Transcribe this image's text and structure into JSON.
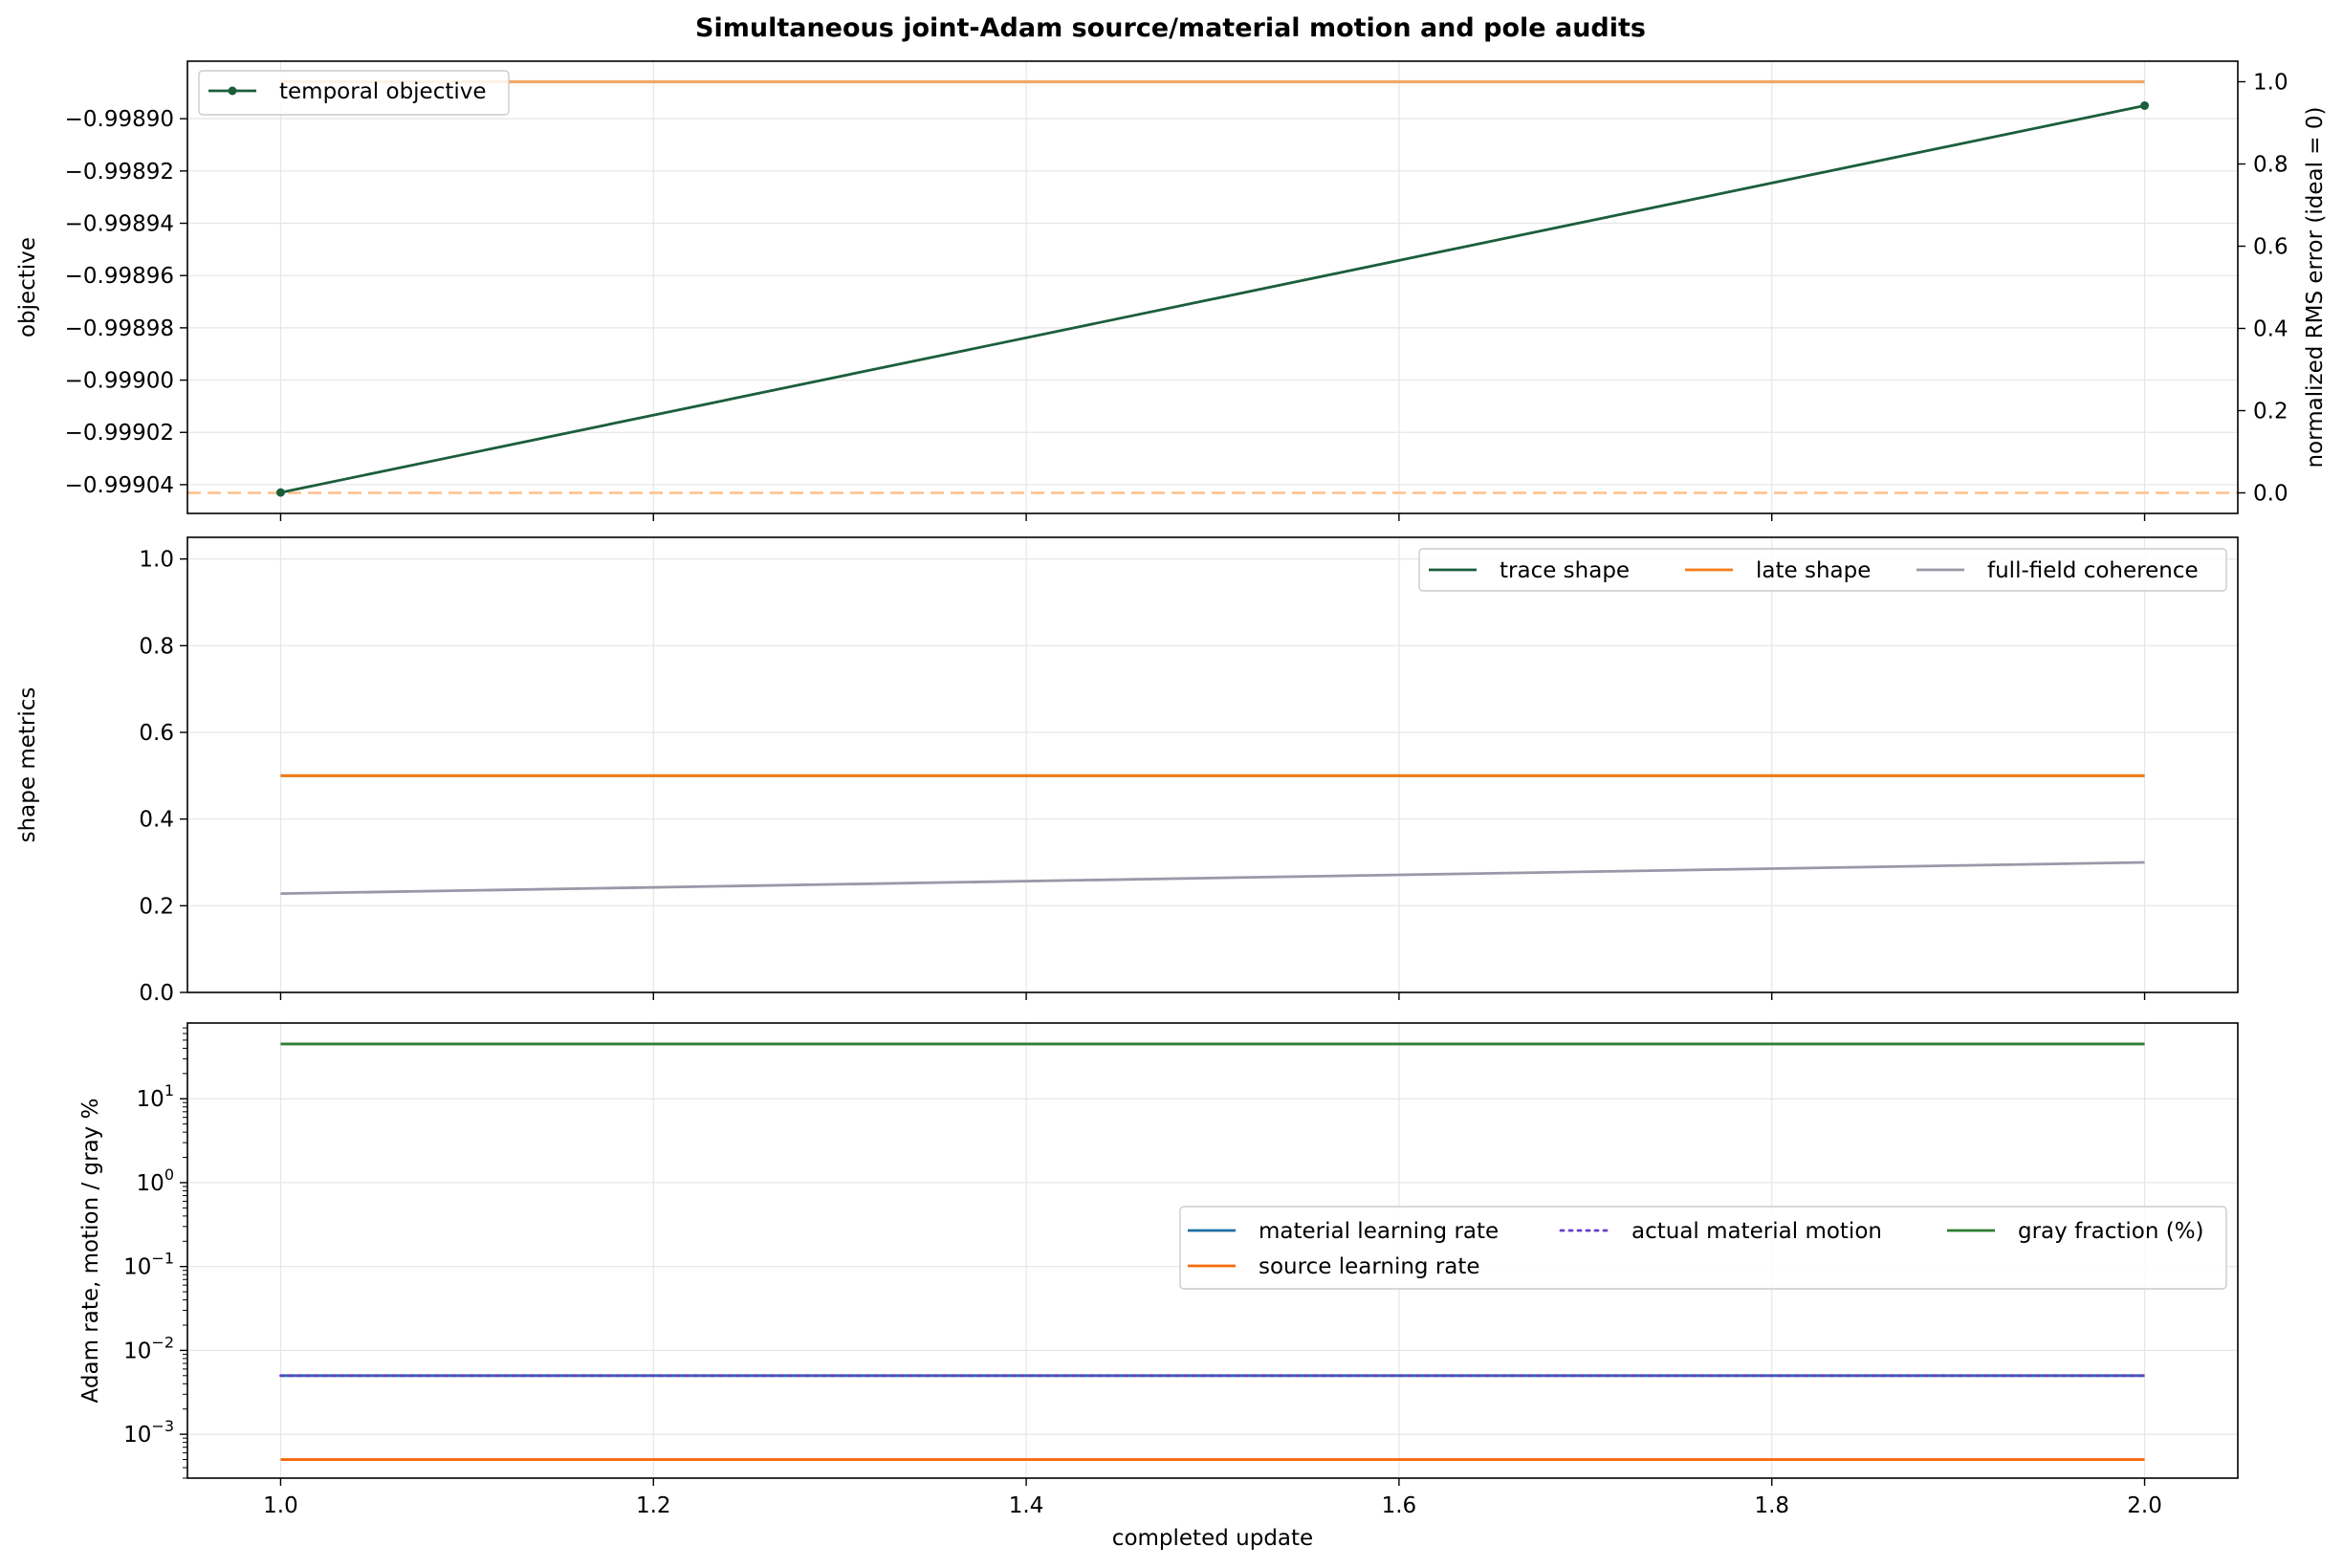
{
  "figure": {
    "title": "Simultaneous joint-Adam source/material motion and pole audits"
  },
  "chart_data": [
    {
      "type": "line",
      "xlabel": "",
      "ylabel": "objective",
      "y2label": "normalized RMS error (ideal = 0)",
      "xlim": [
        0.95,
        2.05
      ],
      "ylim": [
        -0.999051,
        -0.998878
      ],
      "y2lim": [
        -0.05,
        1.05
      ],
      "xticks": [
        1.0,
        1.2,
        1.4,
        1.6,
        1.8,
        2.0
      ],
      "yticks": [
        -0.9989,
        -0.99892,
        -0.99894,
        -0.99896,
        -0.99898,
        -0.999,
        -0.99902,
        -0.99904
      ],
      "ytick_labels": [
        "−0.99890",
        "−0.99892",
        "−0.99894",
        "−0.99896",
        "−0.99898",
        "−0.99900",
        "−0.99902",
        "−0.99904"
      ],
      "y2ticks": [
        0.0,
        0.2,
        0.4,
        0.6,
        0.8,
        1.0
      ],
      "y2tick_labels": [
        "0.0",
        "0.2",
        "0.4",
        "0.6",
        "0.8",
        "1.0"
      ],
      "grid": true,
      "legend_position": "upper-left",
      "series": [
        {
          "name": "temporal objective",
          "x": [
            1.0,
            2.0
          ],
          "y": [
            -0.999043,
            -0.998895
          ],
          "color": "#1b5e3b",
          "axis": "left",
          "markers": true
        }
      ],
      "right_axis_lines": [
        {
          "x": [
            1.0,
            2.0
          ],
          "y": [
            1.0,
            1.0
          ],
          "color": "#f0a868",
          "style": "solid"
        }
      ],
      "reference_lines": [
        {
          "axis": "right",
          "y": 0.0,
          "color": "#ffbf8a",
          "style": "dashed"
        }
      ]
    },
    {
      "type": "line",
      "xlabel": "",
      "ylabel": "shape metrics",
      "xlim": [
        0.95,
        2.05
      ],
      "ylim": [
        0.0,
        1.05
      ],
      "xticks": [
        1.0,
        1.2,
        1.4,
        1.6,
        1.8,
        2.0
      ],
      "yticks": [
        0.0,
        0.2,
        0.4,
        0.6,
        0.8,
        1.0
      ],
      "ytick_labels": [
        "0.0",
        "0.2",
        "0.4",
        "0.6",
        "0.8",
        "1.0"
      ],
      "grid": true,
      "legend_position": "upper-right",
      "series": [
        {
          "name": "trace shape",
          "x": [
            1.0,
            2.0
          ],
          "y": [
            0.5,
            0.5
          ],
          "color": "#1b5e3b",
          "style": "solid"
        },
        {
          "name": "late shape",
          "x": [
            1.0,
            2.0
          ],
          "y": [
            0.5,
            0.5
          ],
          "color": "#f57c14",
          "style": "solid"
        },
        {
          "name": "full-field coherence",
          "x": [
            1.0,
            2.0
          ],
          "y": [
            0.228,
            0.3
          ],
          "color": "#9a98a8",
          "style": "solid"
        }
      ]
    },
    {
      "type": "line",
      "xlabel": "completed update",
      "ylabel": "Adam rate, motion / gray %",
      "yscale": "log",
      "xlim": [
        0.95,
        2.05
      ],
      "ylim": [
        0.0003,
        80
      ],
      "xticks": [
        1.0,
        1.2,
        1.4,
        1.6,
        1.8,
        2.0
      ],
      "xtick_labels": [
        "1.0",
        "1.2",
        "1.4",
        "1.6",
        "1.8",
        "2.0"
      ],
      "yticks": [
        0.001,
        0.01,
        0.1,
        1,
        10
      ],
      "ytick_bases": [
        "10",
        "10",
        "10",
        "10",
        "10"
      ],
      "ytick_exps": [
        "−3",
        "−2",
        "−1",
        "0",
        "1"
      ],
      "grid": true,
      "legend_position": "center-right",
      "series": [
        {
          "name": "material learning rate",
          "x": [
            1.0,
            2.0
          ],
          "y": [
            0.005,
            0.005
          ],
          "color": "#1f6fa8",
          "style": "solid"
        },
        {
          "name": "source learning rate",
          "x": [
            1.0,
            2.0
          ],
          "y": [
            0.0005,
            0.0005
          ],
          "color": "#f56a0a",
          "style": "solid"
        },
        {
          "name": "actual material motion",
          "x": [
            1.0,
            2.0
          ],
          "y": [
            0.005,
            0.005
          ],
          "color": "#6a3fc8",
          "style": "dotted"
        },
        {
          "name": "gray fraction (%)",
          "x": [
            1.0,
            2.0
          ],
          "y": [
            45,
            45
          ],
          "color": "#2e7d32",
          "style": "solid"
        }
      ]
    }
  ]
}
